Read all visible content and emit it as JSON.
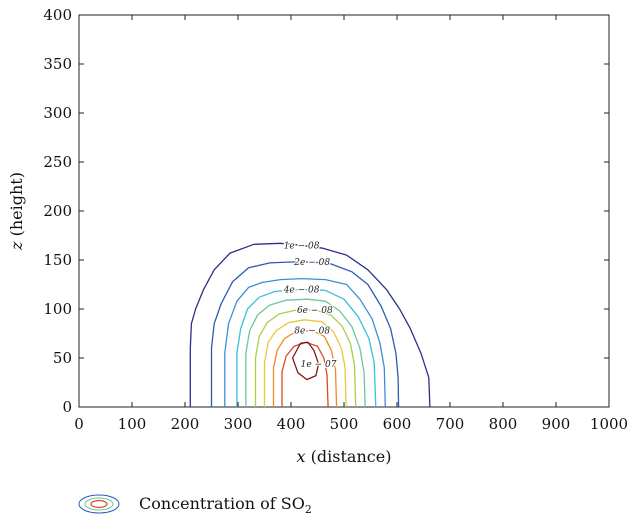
{
  "chart_data": {
    "type": "contour",
    "xlabel_var": "x",
    "xlabel_rest": "(distance)",
    "ylabel_var": "z",
    "ylabel_rest": "(height)",
    "xlim": [
      0,
      1000
    ],
    "ylim": [
      0,
      400
    ],
    "xticks": [
      0,
      100,
      200,
      300,
      400,
      500,
      600,
      700,
      800,
      900,
      1000
    ],
    "yticks": [
      0,
      50,
      100,
      150,
      200,
      250,
      300,
      350,
      400
    ],
    "grid": false,
    "legend": {
      "position": "bottom-left",
      "label_main": "Concentration of SO",
      "label_sub": "2"
    },
    "contour_levels": [
      {
        "level": 1e-08,
        "label": "1e − 08",
        "color": "#2b2f8a",
        "points": [
          [
            210,
            0
          ],
          [
            210,
            60
          ],
          [
            212,
            85
          ],
          [
            220,
            100
          ],
          [
            235,
            120
          ],
          [
            255,
            140
          ],
          [
            285,
            157
          ],
          [
            330,
            166
          ],
          [
            380,
            167
          ],
          [
            420,
            165
          ],
          [
            460,
            162
          ],
          [
            505,
            155
          ],
          [
            545,
            140
          ],
          [
            580,
            120
          ],
          [
            605,
            100
          ],
          [
            625,
            80
          ],
          [
            645,
            55
          ],
          [
            660,
            30
          ],
          [
            662,
            0
          ]
        ]
      },
      {
        "level": 2e-08,
        "label": "2e − 08",
        "color": "#2c5ab5",
        "points": [
          [
            250,
            0
          ],
          [
            250,
            60
          ],
          [
            255,
            85
          ],
          [
            268,
            105
          ],
          [
            290,
            128
          ],
          [
            320,
            142
          ],
          [
            360,
            147
          ],
          [
            400,
            148
          ],
          [
            440,
            148
          ],
          [
            475,
            146
          ],
          [
            515,
            138
          ],
          [
            545,
            125
          ],
          [
            570,
            103
          ],
          [
            588,
            80
          ],
          [
            598,
            55
          ],
          [
            602,
            30
          ],
          [
            603,
            0
          ]
        ]
      },
      {
        "level": 3e-08,
        "label": "",
        "color": "#3a8ed6",
        "points": [
          [
            275,
            0
          ],
          [
            275,
            55
          ],
          [
            282,
            85
          ],
          [
            298,
            108
          ],
          [
            320,
            122
          ],
          [
            345,
            127
          ],
          [
            380,
            130
          ],
          [
            420,
            131
          ],
          [
            465,
            130
          ],
          [
            505,
            125
          ],
          [
            530,
            110
          ],
          [
            553,
            90
          ],
          [
            568,
            65
          ],
          [
            576,
            40
          ],
          [
            578,
            0
          ]
        ]
      },
      {
        "level": 4e-08,
        "label": "4e − 08",
        "color": "#35c2d8",
        "points": [
          [
            298,
            0
          ],
          [
            298,
            55
          ],
          [
            305,
            80
          ],
          [
            318,
            100
          ],
          [
            340,
            112
          ],
          [
            370,
            118
          ],
          [
            420,
            120
          ],
          [
            465,
            119
          ],
          [
            500,
            110
          ],
          [
            527,
            92
          ],
          [
            547,
            70
          ],
          [
            557,
            45
          ],
          [
            560,
            0
          ]
        ]
      },
      {
        "level": 5e-08,
        "label": "",
        "color": "#6cc79a",
        "points": [
          [
            315,
            0
          ],
          [
            315,
            55
          ],
          [
            322,
            78
          ],
          [
            337,
            94
          ],
          [
            360,
            104
          ],
          [
            390,
            109
          ],
          [
            430,
            110
          ],
          [
            465,
            108
          ],
          [
            492,
            98
          ],
          [
            515,
            82
          ],
          [
            530,
            60
          ],
          [
            538,
            35
          ],
          [
            540,
            0
          ]
        ]
      },
      {
        "level": 6e-08,
        "label": "6e − 08",
        "color": "#a9cf4a",
        "points": [
          [
            333,
            0
          ],
          [
            333,
            50
          ],
          [
            340,
            72
          ],
          [
            355,
            86
          ],
          [
            378,
            95
          ],
          [
            410,
            99
          ],
          [
            445,
            99
          ],
          [
            475,
            94
          ],
          [
            497,
            82
          ],
          [
            512,
            65
          ],
          [
            520,
            42
          ],
          [
            522,
            0
          ]
        ]
      },
      {
        "level": 7e-08,
        "label": "",
        "color": "#e7c93a",
        "points": [
          [
            350,
            0
          ],
          [
            350,
            45
          ],
          [
            357,
            66
          ],
          [
            372,
            78
          ],
          [
            395,
            86
          ],
          [
            425,
            89
          ],
          [
            458,
            87
          ],
          [
            480,
            77
          ],
          [
            495,
            60
          ],
          [
            502,
            40
          ],
          [
            504,
            0
          ]
        ]
      },
      {
        "level": 8e-08,
        "label": "8e − 08",
        "color": "#ef8a2a",
        "points": [
          [
            367,
            0
          ],
          [
            367,
            40
          ],
          [
            374,
            58
          ],
          [
            388,
            70
          ],
          [
            410,
            77
          ],
          [
            440,
            78
          ],
          [
            463,
            72
          ],
          [
            476,
            58
          ],
          [
            484,
            38
          ],
          [
            486,
            0
          ]
        ]
      },
      {
        "level": 9e-08,
        "label": "",
        "color": "#d94a2a",
        "points": [
          [
            383,
            0
          ],
          [
            383,
            36
          ],
          [
            391,
            52
          ],
          [
            406,
            62
          ],
          [
            428,
            66
          ],
          [
            450,
            62
          ],
          [
            462,
            50
          ],
          [
            468,
            33
          ],
          [
            470,
            0
          ]
        ]
      },
      {
        "level": 1e-07,
        "label": "1e − 07",
        "color": "#8a1414",
        "points": [
          [
            403,
            50
          ],
          [
            413,
            35
          ],
          [
            430,
            28
          ],
          [
            447,
            32
          ],
          [
            452,
            44
          ],
          [
            443,
            58
          ],
          [
            432,
            66
          ],
          [
            418,
            65
          ],
          [
            403,
            50
          ]
        ],
        "closed": true
      }
    ]
  }
}
